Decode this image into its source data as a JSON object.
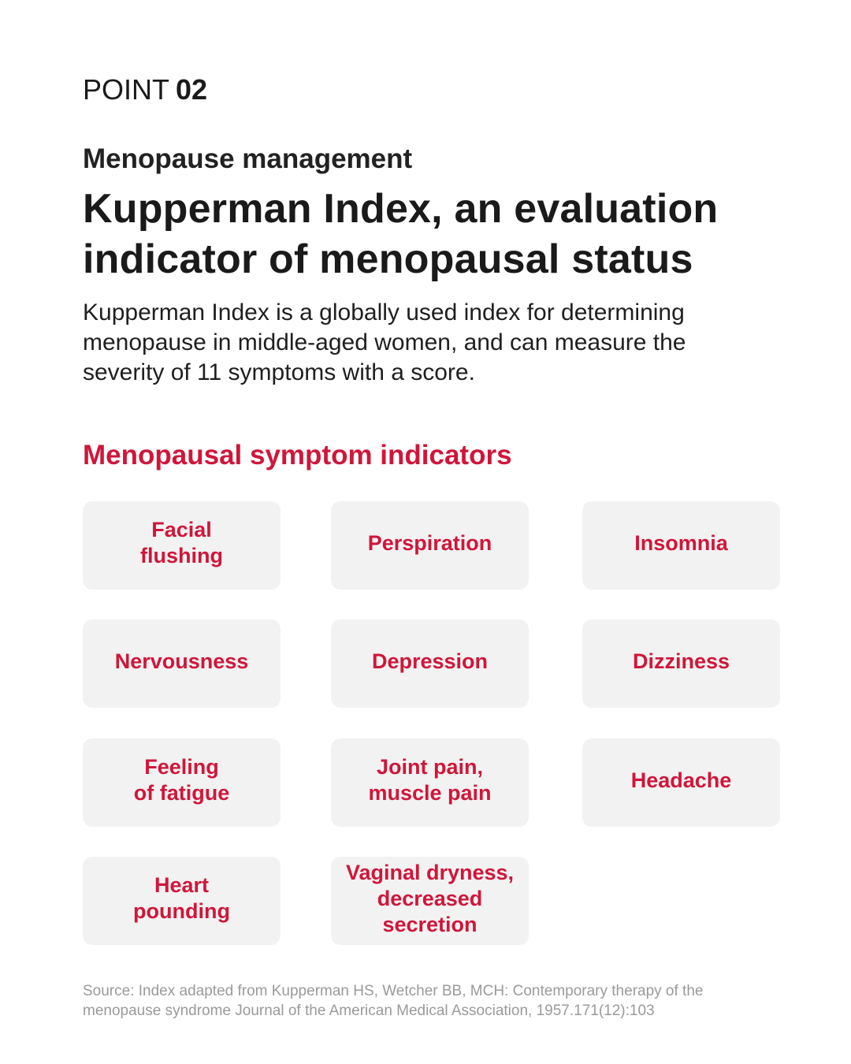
{
  "header": {
    "point_word": "POINT",
    "point_number": "02"
  },
  "subtitle": "Menopause management",
  "title": {
    "line1": "Kupperman Index, an evaluation",
    "line2": "indicator of menopausal status"
  },
  "description": {
    "line1": "Kupperman Index is a globally used index for determining",
    "line2": "menopause in middle-aged women, and can measure the",
    "line3": "severity of 11 symptoms with a score."
  },
  "section_title": "Menopausal symptom indicators",
  "symptoms": [
    {
      "lines": [
        "Facial",
        "flushing"
      ]
    },
    {
      "lines": [
        "Perspiration"
      ]
    },
    {
      "lines": [
        "Insomnia"
      ]
    },
    {
      "lines": [
        "Nervousness"
      ]
    },
    {
      "lines": [
        "Depression"
      ]
    },
    {
      "lines": [
        "Dizziness"
      ]
    },
    {
      "lines": [
        "Feeling",
        "of fatigue"
      ]
    },
    {
      "lines": [
        "Joint pain,",
        "muscle pain"
      ]
    },
    {
      "lines": [
        "Headache"
      ]
    },
    {
      "lines": [
        "Heart",
        "pounding"
      ]
    },
    {
      "lines": [
        "Vaginal dryness,",
        "decreased",
        "secretion"
      ]
    }
  ],
  "source": {
    "line1": "Source: Index adapted from Kupperman HS, Wetcher BB, MCH: Contemporary therapy of the",
    "line2": "menopause syndrome Journal of the American Medical Association, 1957.171(12):103"
  },
  "colors": {
    "accent": "#d0163a",
    "card_background": "#f2f2f2",
    "text": "#1a1a1a",
    "muted": "#9a9a9a"
  }
}
